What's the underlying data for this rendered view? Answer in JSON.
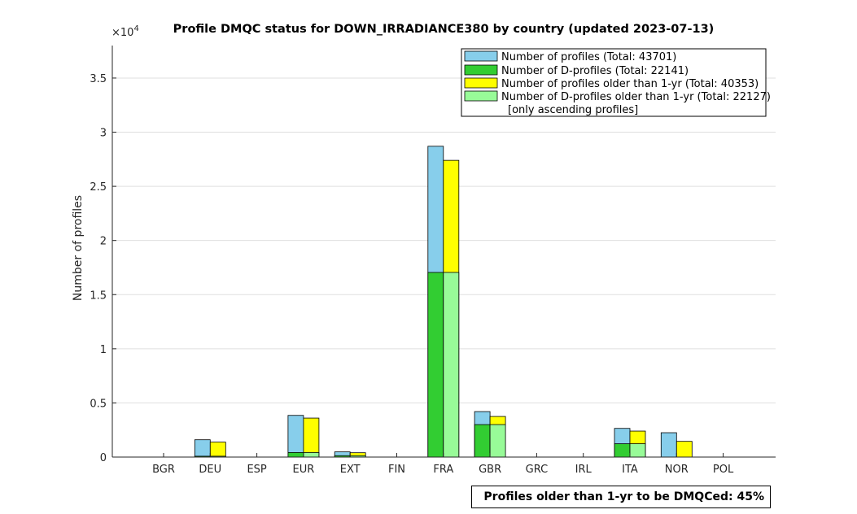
{
  "chart_data": {
    "type": "bar",
    "title": "Profile DMQC status for DOWN_IRRADIANCE380 by country (updated 2023-07-13)",
    "xlabel": "",
    "ylabel": "Number of profiles",
    "y_exponent_label": "×10",
    "y_exponent_power": "4",
    "ylim": [
      0,
      38000
    ],
    "yticks": [
      0,
      5000,
      10000,
      15000,
      20000,
      25000,
      30000,
      35000
    ],
    "ytick_labels": [
      "0",
      "0.5",
      "1",
      "1.5",
      "2",
      "2.5",
      "3",
      "3.5"
    ],
    "grid": "horizontal",
    "legend_position": "top-right",
    "categories": [
      "BGR",
      "DEU",
      "ESP",
      "EUR",
      "EXT",
      "FIN",
      "FRA",
      "GBR",
      "GRC",
      "IRL",
      "ITA",
      "NOR",
      "POL"
    ],
    "series": [
      {
        "name": "Number of profiles (Total: 43701)",
        "color": "#87ceeb",
        "values": [
          0,
          1600,
          0,
          3850,
          480,
          0,
          28700,
          4200,
          0,
          0,
          2650,
          2250,
          0
        ]
      },
      {
        "name": "Number of D-profiles (Total: 22141)",
        "color": "#32cd32",
        "values": [
          0,
          80,
          0,
          420,
          130,
          0,
          17050,
          3000,
          0,
          0,
          1230,
          0,
          0
        ]
      },
      {
        "name": "Number of profiles older than 1-yr (Total: 40353)",
        "color": "#ffff00",
        "values": [
          0,
          1380,
          0,
          3600,
          400,
          0,
          27400,
          3750,
          0,
          0,
          2400,
          1450,
          0
        ]
      },
      {
        "name": "Number of D-profiles older than 1-yr (Total: 22127)",
        "color": "#98fb98",
        "values": [
          0,
          80,
          0,
          420,
          130,
          0,
          17050,
          3000,
          0,
          0,
          1230,
          0,
          0
        ]
      }
    ],
    "legend_note": "[only ascending profiles]",
    "footer": "Profiles older than 1-yr to be DMQCed: 45%"
  }
}
